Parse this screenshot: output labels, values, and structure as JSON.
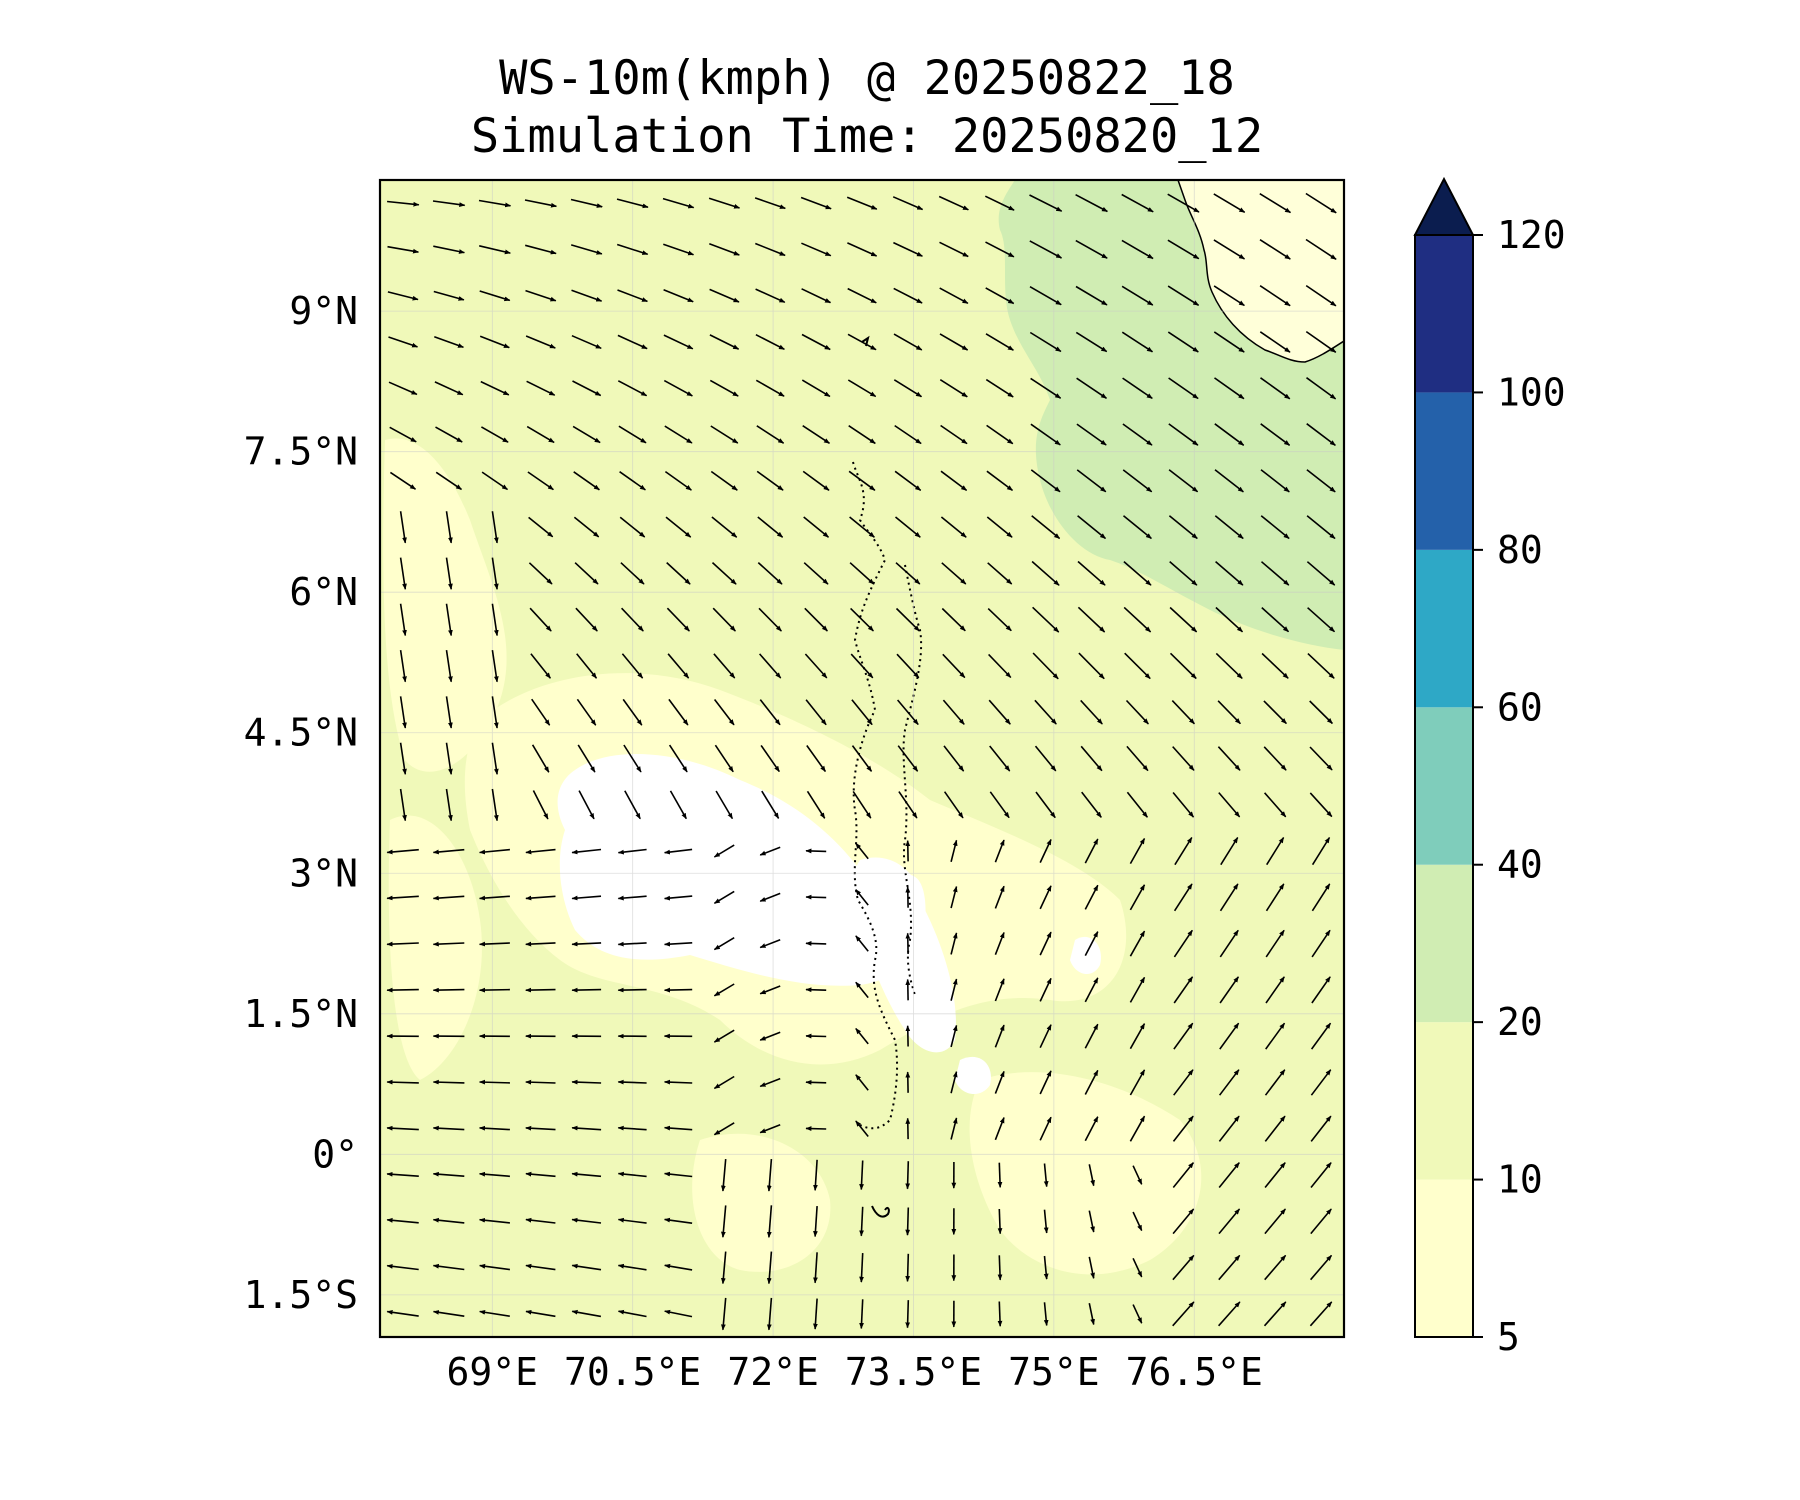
{
  "title": {
    "line1": "WS-10m(kmph) @ 20250822_18",
    "line2": "Simulation Time: 20250820_12"
  },
  "map": {
    "lon_range": [
      67.8,
      78.1
    ],
    "lat_range": [
      -1.95,
      10.4
    ],
    "xticks": [
      {
        "value": 69.0,
        "label": "69°E"
      },
      {
        "value": 70.5,
        "label": "70.5°E"
      },
      {
        "value": 72.0,
        "label": "72°E"
      },
      {
        "value": 73.5,
        "label": "73.5°E"
      },
      {
        "value": 75.0,
        "label": "75°E"
      },
      {
        "value": 76.5,
        "label": "76.5°E"
      }
    ],
    "yticks": [
      {
        "value": 9.0,
        "label": "9°N"
      },
      {
        "value": 7.5,
        "label": "7.5°N"
      },
      {
        "value": 6.0,
        "label": "6°N"
      },
      {
        "value": 4.5,
        "label": "4.5°N"
      },
      {
        "value": 3.0,
        "label": "3°N"
      },
      {
        "value": 1.5,
        "label": "1.5°N"
      },
      {
        "value": 0.0,
        "label": "0°"
      },
      {
        "value": -1.5,
        "label": "1.5°S"
      }
    ],
    "gridlines": true
  },
  "colorbar": {
    "levels": [
      5,
      10,
      20,
      40,
      60,
      80,
      100,
      120
    ],
    "labels": [
      "5",
      "10",
      "20",
      "40",
      "60",
      "80",
      "100",
      "120"
    ],
    "colors": [
      "#ffffcc",
      "#f0f9b9",
      "#d0edb3",
      "#7fcdbb",
      "#2ea8c6",
      "#2461aa",
      "#1f2e82"
    ],
    "extend_color": "#0b1d4f",
    "extend": "max"
  },
  "colors": {
    "band_5_10": "#ffffcc",
    "band_10_20": "#f0f9b9",
    "band_20_40": "#d0edb3",
    "land": "#ffffd9"
  }
}
